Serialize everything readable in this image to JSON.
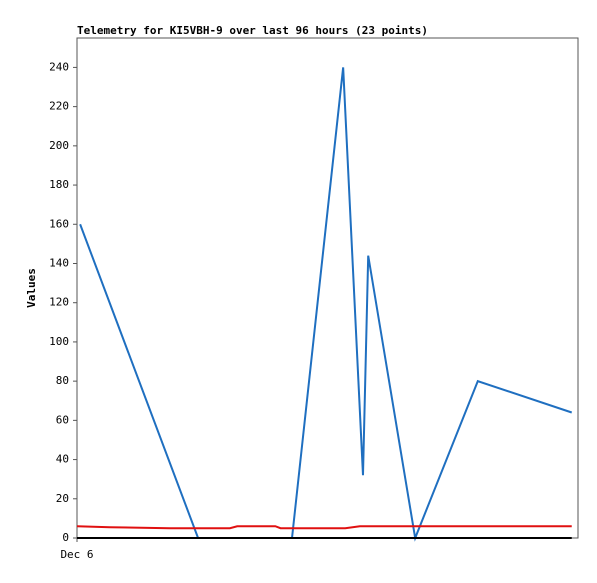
{
  "chart_data": {
    "type": "line",
    "title": "Telemetry for KI5VBH-9 over last 96 hours (23 points)",
    "y_label": "Values",
    "xlim": [
      0,
      96
    ],
    "xticks": [
      {
        "value": 0,
        "label": "Dec 6"
      }
    ],
    "ylim": [
      0,
      255
    ],
    "yticks": [
      0,
      20,
      40,
      60,
      80,
      100,
      120,
      140,
      160,
      180,
      200,
      220,
      240
    ],
    "series": [
      {
        "color": "#1f6fc0",
        "x": [
          0.6,
          23.2,
          41.2,
          51,
          54.8,
          55.8,
          64.8,
          76.8,
          94.8
        ],
        "values": [
          160,
          0,
          0,
          240,
          32,
          144,
          0,
          80,
          64
        ]
      },
      {
        "color": "#e01010",
        "x": [
          0,
          6.3,
          17.8,
          29.3,
          30.7,
          38,
          39,
          51.4,
          54.2,
          94.8
        ],
        "values": [
          6,
          5.5,
          5,
          5,
          6,
          6,
          5,
          5,
          6,
          6
        ]
      },
      {
        "color": "#000000",
        "x": [
          0,
          94.8
        ],
        "values": [
          0,
          0
        ]
      }
    ]
  }
}
